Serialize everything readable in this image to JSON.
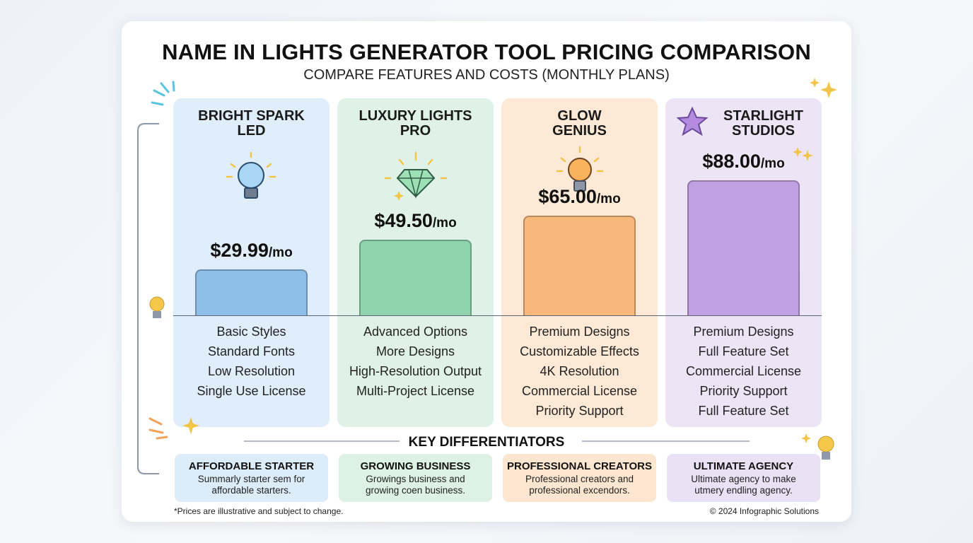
{
  "chart_data": {
    "type": "bar",
    "title": "NAME IN LIGHTS GENERATOR TOOL PRICING COMPARISON",
    "subtitle": "COMPARE FEATURES AND COSTS (MONTHLY PLANS)",
    "categories": [
      "BRIGHT SPARK\nLED",
      "LUXURY LIGHTS\nPRO",
      "GLOW\nGENIUS",
      "STARLIGHT\nSTUDIOS"
    ],
    "values": [
      29.99,
      49.5,
      65,
      88
    ],
    "value_labels": [
      "$29.99",
      "$49.50",
      "$65.00",
      "$88.00"
    ],
    "value_unit": "/mo",
    "colors": [
      "#8fbfe9",
      "#90d4ae",
      "#f8b87c",
      "#c1a0e1"
    ],
    "features": [
      [
        "Basic Styles",
        "Standard Fonts",
        "Low Resolution",
        "Single Use License"
      ],
      [
        "Advanced Options",
        "More Designs",
        "High-Resolution Output",
        "Multi-Project License"
      ],
      [
        "Premium Designs",
        "Customizable Effects",
        "4K Resolution",
        "Commercial License",
        "Priority Support"
      ],
      [
        "Premium Designs",
        "Full Feature Set",
        "Commercial License",
        "Priority Support",
        "Full Feature Set"
      ]
    ],
    "differentiators": {
      "title": "KEY DIFFERENTIATORS",
      "items": [
        {
          "title": "AFFORDABLE STARTER",
          "text": "Summarly starter sem for\naffordable starters."
        },
        {
          "title": "GROWING BUSINESS",
          "text": "Growings business and\ngrowing coen business."
        },
        {
          "title": "PROFESSIONAL CREATORS",
          "text": "Professional creators and\nprofessional excendors."
        },
        {
          "title": "ULTIMATE AGENCY",
          "text": "Ultimate agency to make\nutmery endling agency."
        }
      ]
    },
    "footnote": "*Prices are illustrative and subject to change.",
    "copyright": "© 2024 Infographic Solutions"
  }
}
